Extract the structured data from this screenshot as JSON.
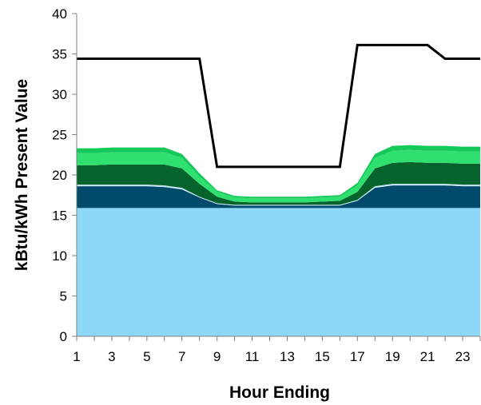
{
  "chart_data": {
    "type": "area",
    "title": "",
    "xlabel": "Hour Ending",
    "ylabel": "kBtu/kWh Present Value",
    "x": [
      1,
      2,
      3,
      4,
      5,
      6,
      7,
      8,
      9,
      10,
      11,
      12,
      13,
      14,
      15,
      16,
      17,
      18,
      19,
      20,
      21,
      22,
      23,
      24
    ],
    "x_tick_labels": [
      "1",
      "3",
      "5",
      "7",
      "9",
      "11",
      "13",
      "15",
      "17",
      "19",
      "21",
      "23"
    ],
    "x_tick_values": [
      1,
      3,
      5,
      7,
      9,
      11,
      13,
      15,
      17,
      19,
      21,
      23
    ],
    "xlim": [
      1,
      24
    ],
    "ylim": [
      0,
      40
    ],
    "y_ticks": [
      0,
      5,
      10,
      15,
      20,
      25,
      30,
      35,
      40
    ],
    "grid": false,
    "legend": "none",
    "stacked_series": [
      {
        "color": "#8dd8f8",
        "values": [
          15.9,
          15.9,
          15.9,
          15.9,
          15.9,
          15.9,
          15.9,
          15.9,
          15.9,
          15.9,
          15.9,
          15.9,
          15.9,
          15.9,
          15.9,
          15.9,
          15.9,
          15.9,
          15.9,
          15.9,
          15.9,
          15.9,
          15.9,
          15.9
        ]
      },
      {
        "color": "#004b6b",
        "values": [
          2.7,
          2.7,
          2.7,
          2.7,
          2.7,
          2.6,
          2.3,
          1.3,
          0.5,
          0.3,
          0.3,
          0.3,
          0.3,
          0.3,
          0.3,
          0.3,
          0.9,
          2.5,
          2.8,
          2.8,
          2.8,
          2.8,
          2.7,
          2.7
        ]
      },
      {
        "color": "#c8e6f2",
        "values": [
          0.2,
          0.2,
          0.2,
          0.2,
          0.2,
          0.2,
          0.2,
          0.1,
          0.1,
          0.1,
          0.1,
          0.1,
          0.1,
          0.1,
          0.1,
          0.1,
          0.1,
          0.2,
          0.2,
          0.2,
          0.2,
          0.2,
          0.2,
          0.2
        ]
      },
      {
        "color": "#07632c",
        "values": [
          2.4,
          2.4,
          2.5,
          2.5,
          2.5,
          2.6,
          2.4,
          1.6,
          0.8,
          0.4,
          0.3,
          0.3,
          0.3,
          0.3,
          0.4,
          0.5,
          1.0,
          2.2,
          2.6,
          2.7,
          2.6,
          2.6,
          2.6,
          2.6
        ]
      },
      {
        "color": "#2fe070",
        "values": [
          1.5,
          1.5,
          1.5,
          1.5,
          1.5,
          1.5,
          1.3,
          0.9,
          0.6,
          0.5,
          0.5,
          0.5,
          0.5,
          0.5,
          0.5,
          0.5,
          0.8,
          1.3,
          1.5,
          1.5,
          1.5,
          1.5,
          1.5,
          1.5
        ]
      },
      {
        "color": "#14c859",
        "values": [
          0.6,
          0.6,
          0.6,
          0.6,
          0.6,
          0.6,
          0.5,
          0.4,
          0.2,
          0.2,
          0.2,
          0.2,
          0.2,
          0.2,
          0.2,
          0.2,
          0.3,
          0.5,
          0.6,
          0.6,
          0.6,
          0.6,
          0.6,
          0.6
        ]
      }
    ],
    "line_series": [
      {
        "color": "#000000",
        "values": [
          34.4,
          34.4,
          34.4,
          34.4,
          34.4,
          34.4,
          34.4,
          34.4,
          21.0,
          21.0,
          21.0,
          21.0,
          21.0,
          21.0,
          21.0,
          21.0,
          36.1,
          36.1,
          36.1,
          36.1,
          36.1,
          34.4,
          34.4,
          34.4
        ]
      }
    ]
  }
}
